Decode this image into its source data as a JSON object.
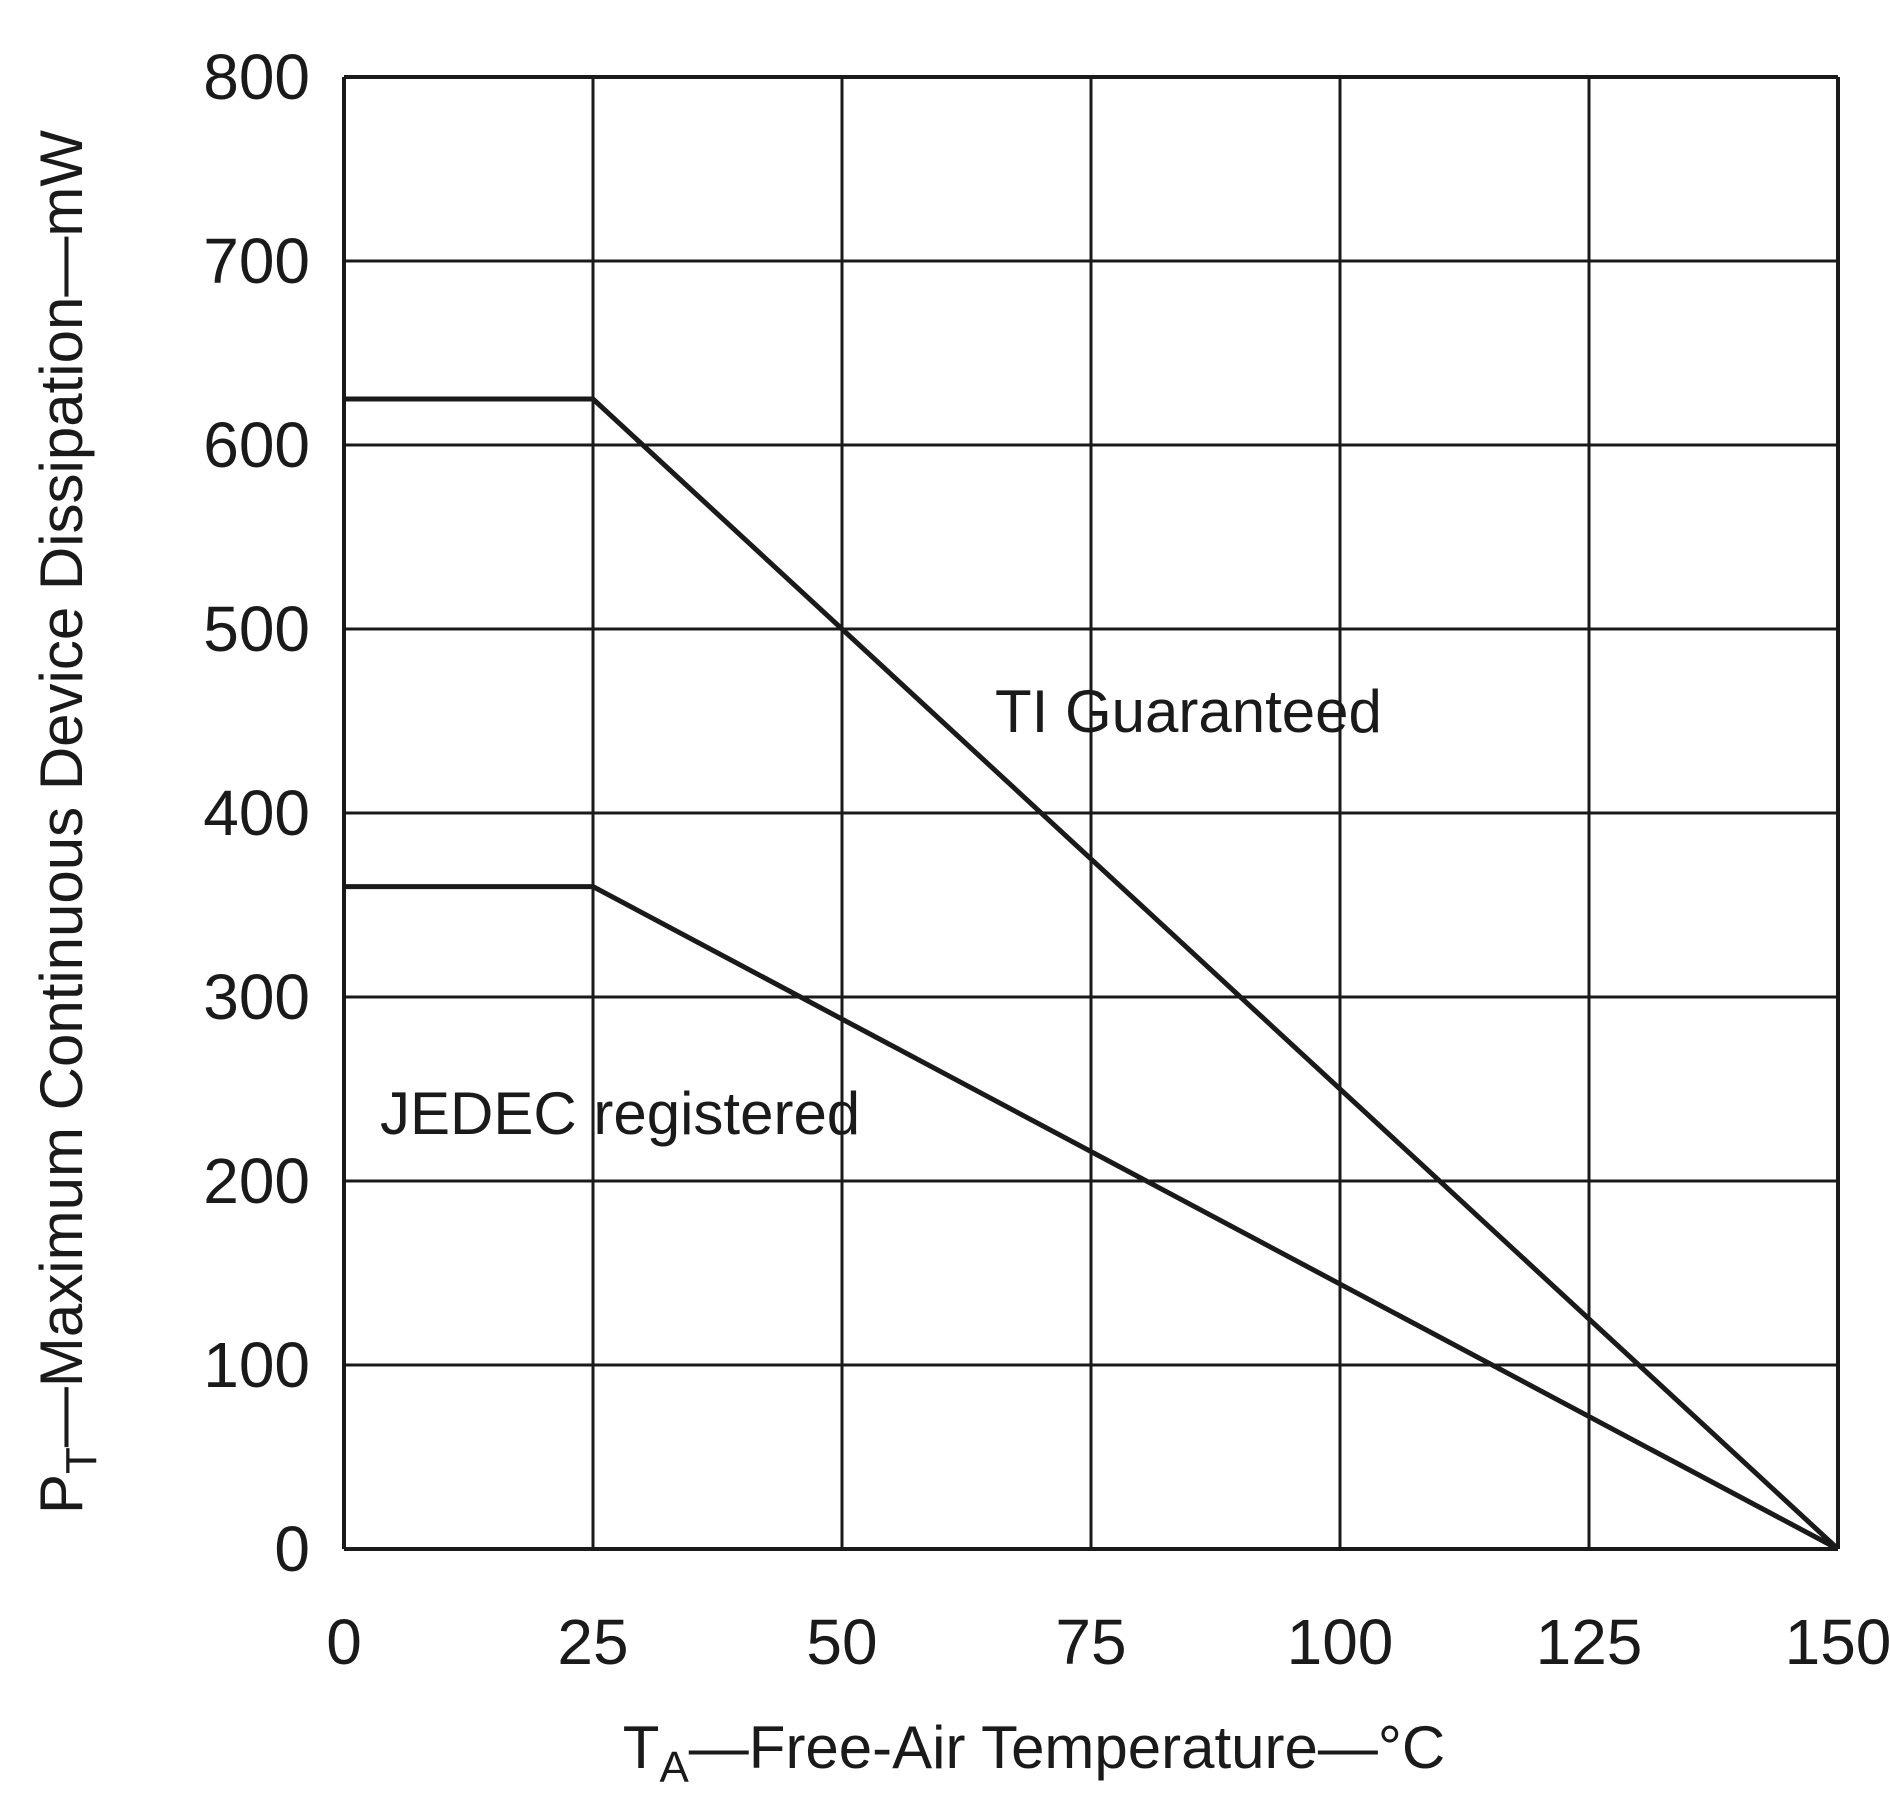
{
  "chart_data": {
    "type": "line",
    "xlabel": {
      "symbol": "T",
      "subscript": "A",
      "text": "—Free-Air Temperature—°C"
    },
    "ylabel": {
      "symbol": "P",
      "subscript": "T",
      "text": "—Maximum Continuous Device Dissipation—mW"
    },
    "xlim": [
      0,
      150
    ],
    "ylim": [
      0,
      800
    ],
    "xticks": [
      0,
      25,
      50,
      75,
      100,
      125,
      150
    ],
    "yticks": [
      0,
      100,
      200,
      300,
      400,
      500,
      600,
      700,
      800
    ],
    "grid": true,
    "series": [
      {
        "name": "TI Guaranteed",
        "x": [
          0,
          25,
          150
        ],
        "y": [
          625,
          625,
          0
        ]
      },
      {
        "name": "JEDEC registered",
        "x": [
          0,
          25,
          150
        ],
        "y": [
          360,
          360,
          0
        ]
      }
    ],
    "line_color": "#1a1a1a",
    "grid_color": "#1a1a1a"
  }
}
